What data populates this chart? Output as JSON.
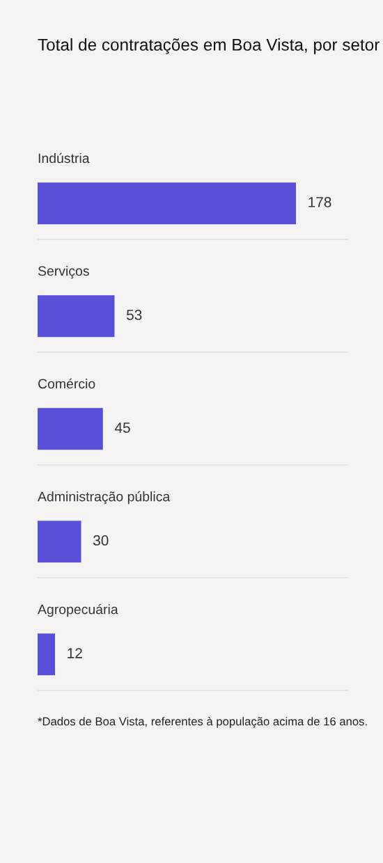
{
  "chart_data": {
    "type": "bar",
    "orientation": "horizontal",
    "title": "Total de contratações em Boa Vista, por setor",
    "categories": [
      "Indústria",
      "Serviços",
      "Comércio",
      "Administração pública",
      "Agropecuária"
    ],
    "values": [
      178,
      53,
      45,
      30,
      12
    ],
    "color": "#5851d8",
    "data_labels": true,
    "annotations": [
      "*Dados de Boa Vista, referentes à população acima de 16 anos."
    ]
  }
}
